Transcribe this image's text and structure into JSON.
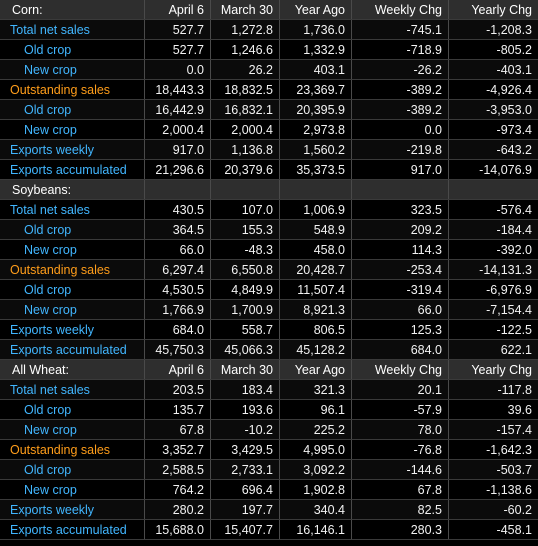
{
  "sections": [
    {
      "name": "Corn:",
      "headers": [
        "April 6",
        "March 30",
        "Year Ago",
        "Weekly Chg",
        "Yearly Chg"
      ],
      "rows": [
        {
          "label": "Total net sales",
          "kind": "main",
          "values": [
            "527.7",
            "1,272.8",
            "1,736.0",
            "-745.1",
            "-1,208.3"
          ]
        },
        {
          "label": "Old crop",
          "kind": "sub",
          "values": [
            "527.7",
            "1,246.6",
            "1,332.9",
            "-718.9",
            "-805.2"
          ]
        },
        {
          "label": "New crop",
          "kind": "sub",
          "values": [
            "0.0",
            "26.2",
            "403.1",
            "-26.2",
            "-403.1"
          ]
        },
        {
          "label": "Outstanding sales",
          "kind": "orange",
          "values": [
            "18,443.3",
            "18,832.5",
            "23,369.7",
            "-389.2",
            "-4,926.4"
          ]
        },
        {
          "label": "Old crop",
          "kind": "sub",
          "values": [
            "16,442.9",
            "16,832.1",
            "20,395.9",
            "-389.2",
            "-3,953.0"
          ]
        },
        {
          "label": "New crop",
          "kind": "sub",
          "values": [
            "2,000.4",
            "2,000.4",
            "2,973.8",
            "0.0",
            "-973.4"
          ]
        },
        {
          "label": "Exports weekly",
          "kind": "main",
          "values": [
            "917.0",
            "1,136.8",
            "1,560.2",
            "-219.8",
            "-643.2"
          ]
        },
        {
          "label": "Exports accumulated",
          "kind": "main",
          "values": [
            "21,296.6",
            "20,379.6",
            "35,373.5",
            "917.0",
            "-14,076.9"
          ]
        }
      ]
    },
    {
      "name": "Soybeans:",
      "headers": [
        "",
        "",
        "",
        "",
        ""
      ],
      "rows": [
        {
          "label": "Total net sales",
          "kind": "main",
          "values": [
            "430.5",
            "107.0",
            "1,006.9",
            "323.5",
            "-576.4"
          ]
        },
        {
          "label": "Old crop",
          "kind": "sub",
          "values": [
            "364.5",
            "155.3",
            "548.9",
            "209.2",
            "-184.4"
          ]
        },
        {
          "label": "New crop",
          "kind": "sub",
          "values": [
            "66.0",
            "-48.3",
            "458.0",
            "114.3",
            "-392.0"
          ]
        },
        {
          "label": "Outstanding sales",
          "kind": "orange",
          "values": [
            "6,297.4",
            "6,550.8",
            "20,428.7",
            "-253.4",
            "-14,131.3"
          ]
        },
        {
          "label": "Old crop",
          "kind": "sub",
          "values": [
            "4,530.5",
            "4,849.9",
            "11,507.4",
            "-319.4",
            "-6,976.9"
          ]
        },
        {
          "label": "New crop",
          "kind": "sub",
          "values": [
            "1,766.9",
            "1,700.9",
            "8,921.3",
            "66.0",
            "-7,154.4"
          ]
        },
        {
          "label": "Exports weekly",
          "kind": "main",
          "values": [
            "684.0",
            "558.7",
            "806.5",
            "125.3",
            "-122.5"
          ]
        },
        {
          "label": "Exports accumulated",
          "kind": "main",
          "values": [
            "45,750.3",
            "45,066.3",
            "45,128.2",
            "684.0",
            "622.1"
          ]
        }
      ]
    },
    {
      "name": "All Wheat:",
      "headers": [
        "April 6",
        "March 30",
        "Year Ago",
        "Weekly Chg",
        "Yearly Chg"
      ],
      "rows": [
        {
          "label": "Total net sales",
          "kind": "main",
          "values": [
            "203.5",
            "183.4",
            "321.3",
            "20.1",
            "-117.8"
          ]
        },
        {
          "label": "Old crop",
          "kind": "sub",
          "values": [
            "135.7",
            "193.6",
            "96.1",
            "-57.9",
            "39.6"
          ]
        },
        {
          "label": "New crop",
          "kind": "sub",
          "values": [
            "67.8",
            "-10.2",
            "225.2",
            "78.0",
            "-157.4"
          ]
        },
        {
          "label": "Outstanding sales",
          "kind": "orange",
          "values": [
            "3,352.7",
            "3,429.5",
            "4,995.0",
            "-76.8",
            "-1,642.3"
          ]
        },
        {
          "label": "Old crop",
          "kind": "sub",
          "values": [
            "2,588.5",
            "2,733.1",
            "3,092.2",
            "-144.6",
            "-503.7"
          ]
        },
        {
          "label": "New crop",
          "kind": "sub",
          "values": [
            "764.2",
            "696.4",
            "1,902.8",
            "67.8",
            "-1,138.6"
          ]
        },
        {
          "label": "Exports weekly",
          "kind": "main",
          "values": [
            "280.2",
            "197.7",
            "340.4",
            "82.5",
            "-60.2"
          ]
        },
        {
          "label": "Exports accumulated",
          "kind": "main",
          "values": [
            "15,688.0",
            "15,407.7",
            "16,146.1",
            "280.3",
            "-458.1"
          ]
        }
      ]
    }
  ],
  "colors": {
    "label_blue": "#41b6ff",
    "label_orange": "#ff9d1a",
    "text": "#f2f2f2",
    "background": "#000000",
    "header_background": "#2e2e2e"
  }
}
